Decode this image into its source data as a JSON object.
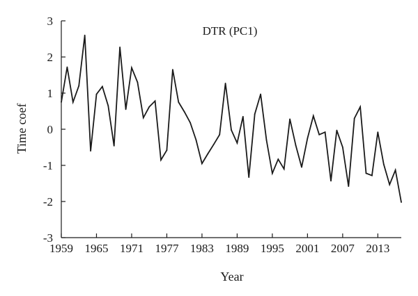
{
  "chart_data": {
    "type": "line",
    "title": "DTR (PC1)",
    "xlabel": "Year",
    "ylabel": "Time coef",
    "xlim": [
      1959,
      2017
    ],
    "ylim": [
      -3,
      3
    ],
    "xticks": [
      1959,
      1965,
      1971,
      1977,
      1983,
      1989,
      1995,
      2001,
      2007,
      2013
    ],
    "yticks": [
      -3,
      -2,
      -1,
      0,
      1,
      2,
      3
    ],
    "grid": false,
    "legend": "none",
    "line_color": "#1a1a1a",
    "series": [
      {
        "x": [
          1959,
          1960,
          1961,
          1962,
          1963,
          1964,
          1965,
          1966,
          1967,
          1968,
          1969,
          1970,
          1971,
          1972,
          1973,
          1974,
          1975,
          1976,
          1977,
          1978,
          1979,
          1980,
          1981,
          1982,
          1983,
          1984,
          1985,
          1986,
          1987,
          1988,
          1989,
          1990,
          1991,
          1992,
          1993,
          1994,
          1995,
          1996,
          1997,
          1998,
          1999,
          2000,
          2001,
          2002,
          2003,
          2004,
          2005,
          2006,
          2007,
          2008,
          2009,
          2010,
          2011,
          2012,
          2013,
          2014,
          2015,
          2016,
          2017
        ],
        "values": [
          0.75,
          1.72,
          0.75,
          1.2,
          2.6,
          -0.6,
          0.97,
          1.18,
          0.65,
          -0.46,
          2.27,
          0.55,
          1.7,
          1.3,
          0.32,
          0.62,
          0.78,
          -0.85,
          -0.58,
          1.65,
          0.75,
          0.48,
          0.18,
          -0.3,
          -0.95,
          -0.68,
          -0.42,
          -0.15,
          1.27,
          -0.02,
          -0.38,
          0.35,
          -1.33,
          0.42,
          0.97,
          -0.3,
          -1.22,
          -0.83,
          -1.1,
          0.28,
          -0.45,
          -1.05,
          -0.25,
          0.37,
          -0.15,
          -0.08,
          -1.43,
          -0.03,
          -0.5,
          -1.58,
          0.3,
          0.62,
          -1.22,
          -1.28,
          -0.08,
          -0.97,
          -1.53,
          -1.13,
          -2.02
        ]
      }
    ]
  }
}
